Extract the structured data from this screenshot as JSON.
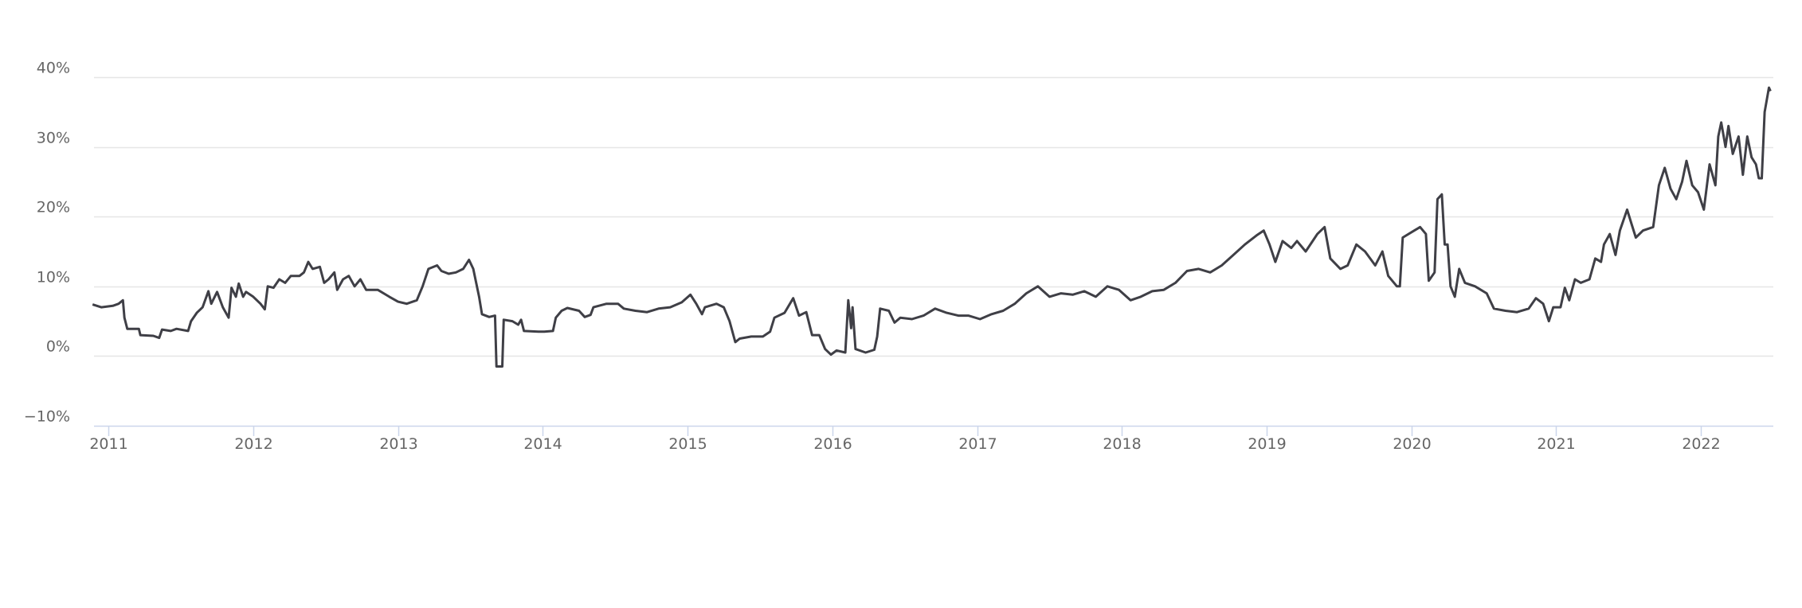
{
  "chart_data": {
    "type": "line",
    "title": "",
    "xlabel": "",
    "ylabel": "",
    "x_unit": "year",
    "xlim": [
      2010.9,
      2022.5
    ],
    "ylim": [
      -10,
      40
    ],
    "grid": true,
    "legend": "none",
    "colors": {
      "line": "#3f3f46",
      "grid": "#e6e6e6",
      "axis": "#ccd6eb",
      "label": "#666666"
    },
    "y_ticks": [
      {
        "value": 40,
        "label": "40%"
      },
      {
        "value": 30,
        "label": "30%"
      },
      {
        "value": 20,
        "label": "20%"
      },
      {
        "value": 10,
        "label": "10%"
      },
      {
        "value": 0,
        "label": "0%"
      },
      {
        "value": -10,
        "label": "−10%"
      }
    ],
    "x_ticks": [
      {
        "value": 2011,
        "label": "2011"
      },
      {
        "value": 2012,
        "label": "2012"
      },
      {
        "value": 2013,
        "label": "2013"
      },
      {
        "value": 2014,
        "label": "2014"
      },
      {
        "value": 2015,
        "label": "2015"
      },
      {
        "value": 2016,
        "label": "2016"
      },
      {
        "value": 2017,
        "label": "2017"
      },
      {
        "value": 2018,
        "label": "2018"
      },
      {
        "value": 2019,
        "label": "2019"
      },
      {
        "value": 2020,
        "label": "2020"
      },
      {
        "value": 2021,
        "label": "2021"
      },
      {
        "value": 2022,
        "label": "2022"
      }
    ],
    "series": [
      {
        "points": [
          [
            2010.89,
            7.4
          ],
          [
            2010.95,
            7.0
          ],
          [
            2011.03,
            7.2
          ],
          [
            2011.07,
            7.5
          ],
          [
            2011.1,
            8.0
          ],
          [
            2011.11,
            5.5
          ],
          [
            2011.13,
            3.9
          ],
          [
            2011.21,
            3.9
          ],
          [
            2011.22,
            3.0
          ],
          [
            2011.31,
            2.9
          ],
          [
            2011.35,
            2.6
          ],
          [
            2011.37,
            3.8
          ],
          [
            2011.43,
            3.6
          ],
          [
            2011.47,
            3.9
          ],
          [
            2011.55,
            3.6
          ],
          [
            2011.57,
            5.0
          ],
          [
            2011.61,
            6.2
          ],
          [
            2011.65,
            7.0
          ],
          [
            2011.69,
            9.3
          ],
          [
            2011.71,
            7.5
          ],
          [
            2011.75,
            9.2
          ],
          [
            2011.79,
            7.0
          ],
          [
            2011.83,
            5.5
          ],
          [
            2011.85,
            9.8
          ],
          [
            2011.88,
            8.5
          ],
          [
            2011.9,
            10.4
          ],
          [
            2011.93,
            8.5
          ],
          [
            2011.95,
            9.2
          ],
          [
            2012.0,
            8.5
          ],
          [
            2012.05,
            7.5
          ],
          [
            2012.08,
            6.7
          ],
          [
            2012.1,
            10.0
          ],
          [
            2012.14,
            9.8
          ],
          [
            2012.18,
            11.0
          ],
          [
            2012.22,
            10.5
          ],
          [
            2012.26,
            11.5
          ],
          [
            2012.32,
            11.5
          ],
          [
            2012.35,
            12.0
          ],
          [
            2012.38,
            13.5
          ],
          [
            2012.41,
            12.5
          ],
          [
            2012.46,
            12.8
          ],
          [
            2012.49,
            10.5
          ],
          [
            2012.52,
            11.0
          ],
          [
            2012.56,
            12.0
          ],
          [
            2012.58,
            9.5
          ],
          [
            2012.62,
            11.0
          ],
          [
            2012.66,
            11.5
          ],
          [
            2012.7,
            10.0
          ],
          [
            2012.74,
            11.0
          ],
          [
            2012.78,
            9.5
          ],
          [
            2012.86,
            9.5
          ],
          [
            2012.94,
            8.5
          ],
          [
            2013.0,
            7.8
          ],
          [
            2013.06,
            7.5
          ],
          [
            2013.13,
            8.0
          ],
          [
            2013.17,
            10.0
          ],
          [
            2013.21,
            12.5
          ],
          [
            2013.27,
            13.0
          ],
          [
            2013.3,
            12.2
          ],
          [
            2013.35,
            11.8
          ],
          [
            2013.4,
            12.0
          ],
          [
            2013.45,
            12.5
          ],
          [
            2013.49,
            13.8
          ],
          [
            2013.52,
            12.5
          ],
          [
            2013.56,
            8.5
          ],
          [
            2013.58,
            6.0
          ],
          [
            2013.63,
            5.6
          ],
          [
            2013.67,
            5.8
          ],
          [
            2013.68,
            -1.5
          ],
          [
            2013.72,
            -1.5
          ],
          [
            2013.73,
            5.2
          ],
          [
            2013.79,
            5.0
          ],
          [
            2013.83,
            4.5
          ],
          [
            2013.85,
            5.2
          ],
          [
            2013.87,
            3.6
          ],
          [
            2013.97,
            3.5
          ],
          [
            2014.01,
            3.5
          ],
          [
            2014.07,
            3.6
          ],
          [
            2014.09,
            5.5
          ],
          [
            2014.13,
            6.5
          ],
          [
            2014.17,
            6.9
          ],
          [
            2014.25,
            6.5
          ],
          [
            2014.29,
            5.6
          ],
          [
            2014.33,
            5.9
          ],
          [
            2014.35,
            7.0
          ],
          [
            2014.44,
            7.5
          ],
          [
            2014.52,
            7.5
          ],
          [
            2014.56,
            6.8
          ],
          [
            2014.64,
            6.5
          ],
          [
            2014.72,
            6.3
          ],
          [
            2014.8,
            6.8
          ],
          [
            2014.88,
            7.0
          ],
          [
            2014.96,
            7.7
          ],
          [
            2015.02,
            8.8
          ],
          [
            2015.06,
            7.5
          ],
          [
            2015.1,
            6.0
          ],
          [
            2015.12,
            7.0
          ],
          [
            2015.2,
            7.5
          ],
          [
            2015.25,
            7.0
          ],
          [
            2015.29,
            5.0
          ],
          [
            2015.33,
            2.0
          ],
          [
            2015.36,
            2.5
          ],
          [
            2015.44,
            2.8
          ],
          [
            2015.52,
            2.8
          ],
          [
            2015.57,
            3.5
          ],
          [
            2015.6,
            5.5
          ],
          [
            2015.67,
            6.2
          ],
          [
            2015.73,
            8.3
          ],
          [
            2015.77,
            5.8
          ],
          [
            2015.82,
            6.3
          ],
          [
            2015.86,
            3.0
          ],
          [
            2015.91,
            3.0
          ],
          [
            2015.95,
            1.0
          ],
          [
            2015.99,
            0.2
          ],
          [
            2016.03,
            0.8
          ],
          [
            2016.09,
            0.5
          ],
          [
            2016.11,
            8.0
          ],
          [
            2016.13,
            4.0
          ],
          [
            2016.14,
            7.0
          ],
          [
            2016.16,
            1.0
          ],
          [
            2016.23,
            0.5
          ],
          [
            2016.29,
            0.9
          ],
          [
            2016.31,
            2.8
          ],
          [
            2016.33,
            6.8
          ],
          [
            2016.39,
            6.5
          ],
          [
            2016.43,
            4.8
          ],
          [
            2016.47,
            5.5
          ],
          [
            2016.55,
            5.3
          ],
          [
            2016.63,
            5.8
          ],
          [
            2016.71,
            6.8
          ],
          [
            2016.79,
            6.2
          ],
          [
            2016.87,
            5.8
          ],
          [
            2016.94,
            5.8
          ],
          [
            2017.02,
            5.3
          ],
          [
            2017.1,
            6.0
          ],
          [
            2017.18,
            6.5
          ],
          [
            2017.26,
            7.5
          ],
          [
            2017.34,
            9.0
          ],
          [
            2017.42,
            10.0
          ],
          [
            2017.5,
            8.5
          ],
          [
            2017.58,
            9.0
          ],
          [
            2017.66,
            8.8
          ],
          [
            2017.74,
            9.3
          ],
          [
            2017.82,
            8.5
          ],
          [
            2017.9,
            10.0
          ],
          [
            2017.98,
            9.5
          ],
          [
            2018.06,
            8.0
          ],
          [
            2018.13,
            8.5
          ],
          [
            2018.21,
            9.3
          ],
          [
            2018.29,
            9.5
          ],
          [
            2018.37,
            10.5
          ],
          [
            2018.45,
            12.2
          ],
          [
            2018.53,
            12.5
          ],
          [
            2018.61,
            12.0
          ],
          [
            2018.69,
            13.0
          ],
          [
            2018.77,
            14.5
          ],
          [
            2018.85,
            16.0
          ],
          [
            2018.93,
            17.3
          ],
          [
            2018.98,
            18.0
          ],
          [
            2019.02,
            16.0
          ],
          [
            2019.06,
            13.5
          ],
          [
            2019.11,
            16.5
          ],
          [
            2019.17,
            15.5
          ],
          [
            2019.21,
            16.5
          ],
          [
            2019.27,
            15.0
          ],
          [
            2019.35,
            17.5
          ],
          [
            2019.4,
            18.5
          ],
          [
            2019.44,
            14.0
          ],
          [
            2019.51,
            12.5
          ],
          [
            2019.56,
            13.0
          ],
          [
            2019.62,
            16.0
          ],
          [
            2019.68,
            15.0
          ],
          [
            2019.75,
            13.0
          ],
          [
            2019.8,
            15.0
          ],
          [
            2019.84,
            11.5
          ],
          [
            2019.9,
            10.0
          ],
          [
            2019.92,
            10.0
          ],
          [
            2019.94,
            17.0
          ],
          [
            2020.02,
            18.0
          ],
          [
            2020.06,
            18.5
          ],
          [
            2020.1,
            17.5
          ],
          [
            2020.12,
            10.8
          ],
          [
            2020.16,
            12.0
          ],
          [
            2020.18,
            22.5
          ],
          [
            2020.21,
            23.2
          ],
          [
            2020.23,
            16.0
          ],
          [
            2020.25,
            16.0
          ],
          [
            2020.27,
            10.0
          ],
          [
            2020.3,
            8.5
          ],
          [
            2020.33,
            12.5
          ],
          [
            2020.37,
            10.5
          ],
          [
            2020.44,
            10.0
          ],
          [
            2020.52,
            9.0
          ],
          [
            2020.57,
            6.8
          ],
          [
            2020.65,
            6.5
          ],
          [
            2020.73,
            6.3
          ],
          [
            2020.81,
            6.8
          ],
          [
            2020.86,
            8.3
          ],
          [
            2020.91,
            7.5
          ],
          [
            2020.95,
            5.0
          ],
          [
            2020.98,
            7.0
          ],
          [
            2021.03,
            7.0
          ],
          [
            2021.06,
            9.8
          ],
          [
            2021.09,
            8.0
          ],
          [
            2021.13,
            11.0
          ],
          [
            2021.17,
            10.5
          ],
          [
            2021.23,
            11.0
          ],
          [
            2021.27,
            14.0
          ],
          [
            2021.31,
            13.5
          ],
          [
            2021.33,
            16.0
          ],
          [
            2021.37,
            17.5
          ],
          [
            2021.41,
            14.5
          ],
          [
            2021.44,
            18.0
          ],
          [
            2021.49,
            21.0
          ],
          [
            2021.52,
            19.0
          ],
          [
            2021.55,
            17.0
          ],
          [
            2021.6,
            18.0
          ],
          [
            2021.67,
            18.5
          ],
          [
            2021.71,
            24.5
          ],
          [
            2021.75,
            27.0
          ],
          [
            2021.79,
            24.0
          ],
          [
            2021.83,
            22.5
          ],
          [
            2021.87,
            25.0
          ],
          [
            2021.9,
            28.0
          ],
          [
            2021.94,
            24.5
          ],
          [
            2021.98,
            23.5
          ],
          [
            2022.02,
            21.0
          ],
          [
            2022.06,
            27.5
          ],
          [
            2022.1,
            24.5
          ],
          [
            2022.12,
            31.5
          ],
          [
            2022.14,
            33.5
          ],
          [
            2022.17,
            30.0
          ],
          [
            2022.19,
            33.0
          ],
          [
            2022.22,
            29.0
          ],
          [
            2022.26,
            31.5
          ],
          [
            2022.29,
            26.0
          ],
          [
            2022.32,
            31.5
          ],
          [
            2022.35,
            28.5
          ],
          [
            2022.38,
            27.5
          ],
          [
            2022.4,
            25.5
          ],
          [
            2022.42,
            25.5
          ],
          [
            2022.44,
            35.0
          ],
          [
            2022.47,
            38.5
          ],
          [
            2022.48,
            38.0
          ]
        ]
      }
    ]
  }
}
